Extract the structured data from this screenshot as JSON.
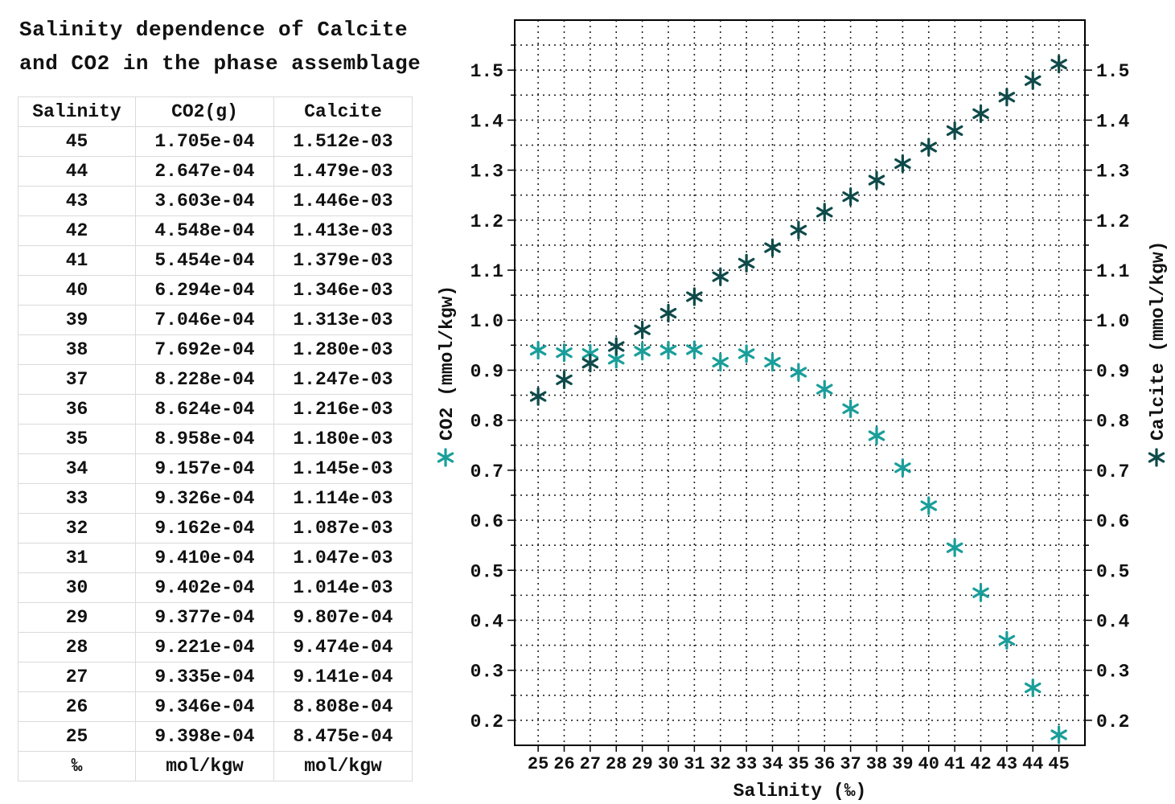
{
  "title_line1": "Salinity dependence of Calcite",
  "title_line2": "and CO2 in the phase assemblage",
  "table": {
    "headers": [
      "Salinity",
      "CO2(g)",
      "Calcite"
    ],
    "rows": [
      [
        "45",
        "1.705e-04",
        "1.512e-03"
      ],
      [
        "44",
        "2.647e-04",
        "1.479e-03"
      ],
      [
        "43",
        "3.603e-04",
        "1.446e-03"
      ],
      [
        "42",
        "4.548e-04",
        "1.413e-03"
      ],
      [
        "41",
        "5.454e-04",
        "1.379e-03"
      ],
      [
        "40",
        "6.294e-04",
        "1.346e-03"
      ],
      [
        "39",
        "7.046e-04",
        "1.313e-03"
      ],
      [
        "38",
        "7.692e-04",
        "1.280e-03"
      ],
      [
        "37",
        "8.228e-04",
        "1.247e-03"
      ],
      [
        "36",
        "8.624e-04",
        "1.216e-03"
      ],
      [
        "35",
        "8.958e-04",
        "1.180e-03"
      ],
      [
        "34",
        "9.157e-04",
        "1.145e-03"
      ],
      [
        "33",
        "9.326e-04",
        "1.114e-03"
      ],
      [
        "32",
        "9.162e-04",
        "1.087e-03"
      ],
      [
        "31",
        "9.410e-04",
        "1.047e-03"
      ],
      [
        "30",
        "9.402e-04",
        "1.014e-03"
      ],
      [
        "29",
        "9.377e-04",
        "9.807e-04"
      ],
      [
        "28",
        "9.221e-04",
        "9.474e-04"
      ],
      [
        "27",
        "9.335e-04",
        "9.141e-04"
      ],
      [
        "26",
        "9.346e-04",
        "8.808e-04"
      ],
      [
        "25",
        "9.398e-04",
        "8.475e-04"
      ]
    ],
    "units": [
      "‰",
      "mol/kgw",
      "mol/kgw"
    ]
  },
  "chart_data": {
    "type": "scatter",
    "xlabel": "Salinity (‰)",
    "ylabel_left": "CO2 (mmol/kgw)",
    "ylabel_right": "Calcite (mmol/kgw)",
    "x": [
      25,
      26,
      27,
      28,
      29,
      30,
      31,
      32,
      33,
      34,
      35,
      36,
      37,
      38,
      39,
      40,
      41,
      42,
      43,
      44,
      45
    ],
    "xlim": [
      24.1,
      46.0
    ],
    "ylim": [
      0.15,
      1.6
    ],
    "yticks": [
      "0.2",
      "0.3",
      "0.4",
      "0.5",
      "0.6",
      "0.7",
      "0.8",
      "0.9",
      "1.0",
      "1.1",
      "1.2",
      "1.3",
      "1.4",
      "1.5"
    ],
    "grid": true,
    "marker": "asterisk",
    "series": [
      {
        "name": "CO2",
        "axis": "left",
        "color": "#1a9e9a",
        "values": [
          0.94,
          0.935,
          0.9335,
          0.922,
          0.938,
          0.94,
          0.941,
          0.916,
          0.933,
          0.916,
          0.896,
          0.862,
          0.823,
          0.769,
          0.705,
          0.629,
          0.545,
          0.455,
          0.36,
          0.265,
          0.171
        ]
      },
      {
        "name": "Calcite",
        "axis": "right",
        "color": "#0f4a4a",
        "values": [
          0.8475,
          0.8808,
          0.9141,
          0.9474,
          0.9807,
          1.014,
          1.047,
          1.087,
          1.114,
          1.145,
          1.18,
          1.216,
          1.247,
          1.28,
          1.313,
          1.346,
          1.379,
          1.413,
          1.446,
          1.479,
          1.512
        ]
      }
    ]
  }
}
